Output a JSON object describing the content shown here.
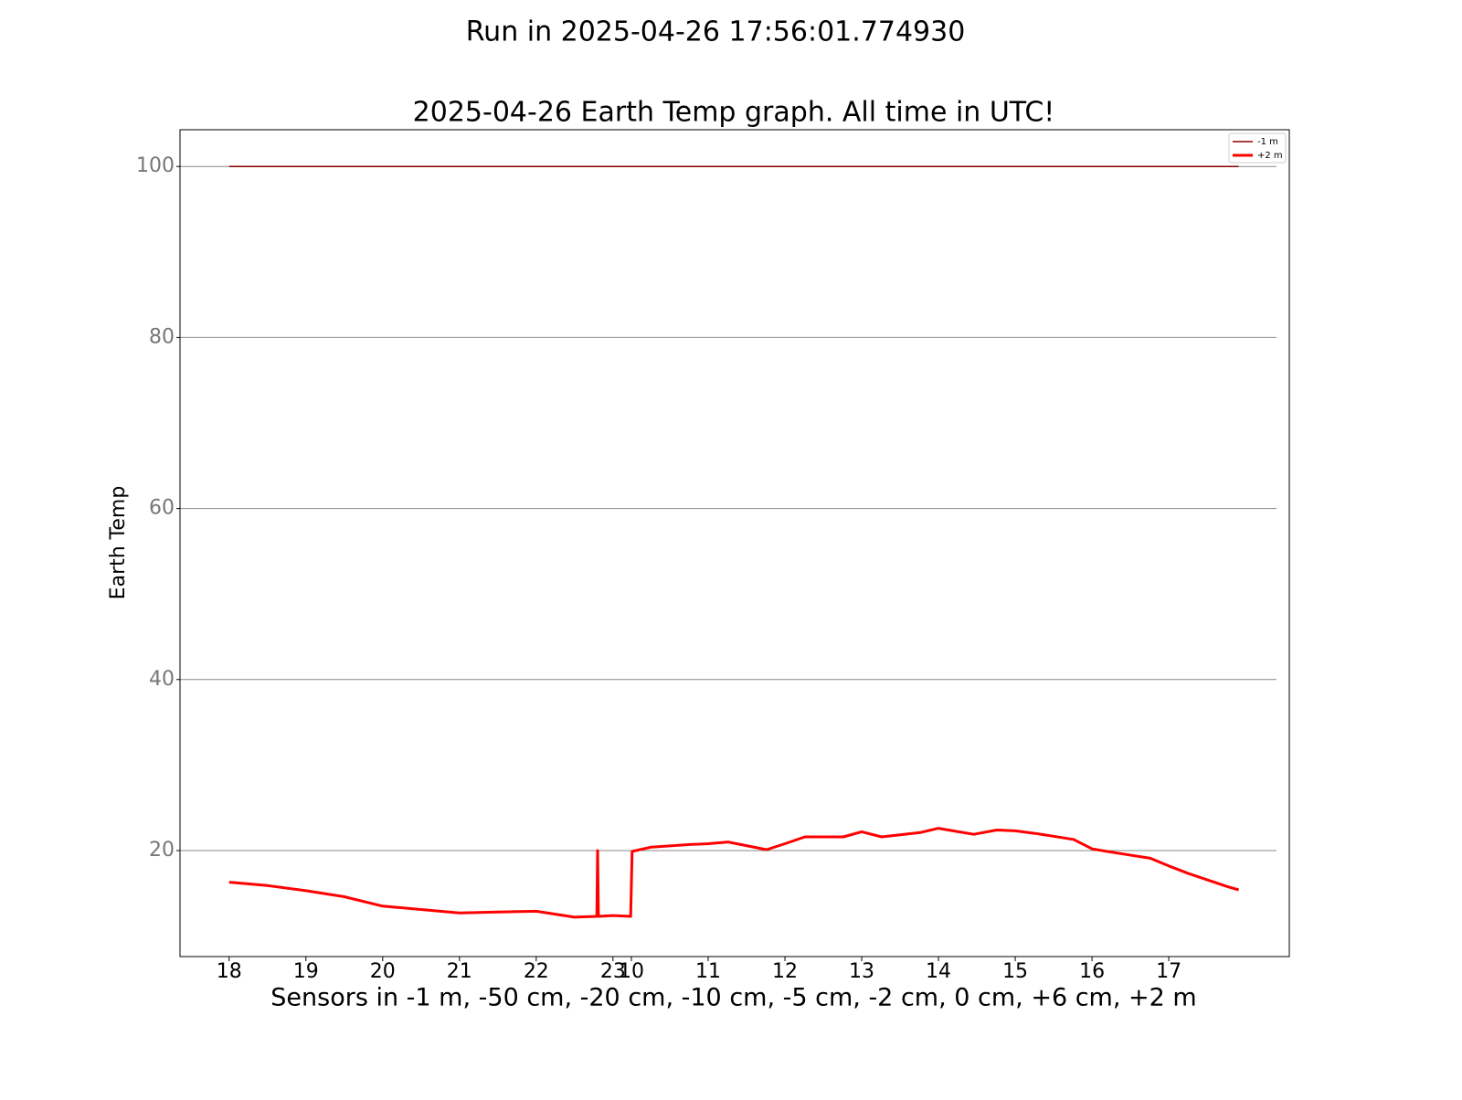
{
  "chart_data": {
    "type": "line",
    "suptitle": "Run in 2025-04-26 17:56:01.774930",
    "title": "2025-04-26 Earth Temp graph. All time in UTC!",
    "y_label": "Earth Temp",
    "x_label": "Sensors in  -1 m, -50 cm, -20 cm, -10 cm, -5 cm, -2 cm, 0 cm, +6 cm, +2 m",
    "x": [
      0,
      0.5,
      1.0,
      1.5,
      2.0,
      2.5,
      3.0,
      3.5,
      4.0,
      4.5,
      4.79,
      4.8,
      4.81,
      5.0,
      5.23,
      5.25,
      5.5,
      6.0,
      6.24,
      6.5,
      7.0,
      7.24,
      7.5,
      8.0,
      8.24,
      8.5,
      9.0,
      9.24,
      9.5,
      9.7,
      10.0,
      10.24,
      10.5,
      11.0,
      11.24,
      11.5,
      12.0,
      12.24,
      12.5,
      13.0,
      13.15
    ],
    "series": [
      {
        "name": "-1 m",
        "color": "#8b0000",
        "width": 1.5,
        "values": [
          100,
          100,
          100,
          100,
          100,
          100,
          100,
          100,
          100,
          100,
          100,
          100,
          100,
          100,
          100,
          100,
          100,
          100,
          100,
          100,
          100,
          100,
          100,
          100,
          100,
          100,
          100,
          100,
          100,
          100,
          100,
          100,
          100,
          100,
          100,
          100,
          100,
          100,
          100,
          100,
          100
        ]
      },
      {
        "name": "+2 m",
        "color": "#ff0000",
        "width": 3,
        "values": [
          16.3,
          15.9,
          15.3,
          14.6,
          13.5,
          13.1,
          12.7,
          12.8,
          12.9,
          12.2,
          12.3,
          20,
          12.3,
          12.4,
          12.3,
          19.9,
          20.4,
          20.7,
          20.8,
          21.0,
          20.1,
          20.8,
          21.6,
          21.6,
          22.2,
          21.6,
          22.1,
          22.6,
          22.2,
          21.9,
          22.4,
          22.3,
          22.0,
          21.3,
          20.2,
          19.8,
          19.1,
          18.2,
          17.3,
          15.8,
          15.4
        ]
      }
    ],
    "xlim": [
      -0.64,
      13.81
    ],
    "xticks": [
      {
        "value": 0,
        "label": "18"
      },
      {
        "value": 1,
        "label": "19"
      },
      {
        "value": 2,
        "label": "20"
      },
      {
        "value": 3,
        "label": "21"
      },
      {
        "value": 4,
        "label": "22"
      },
      {
        "value": 5,
        "label": "23"
      },
      {
        "value": 5.24,
        "label": "10"
      },
      {
        "value": 6.24,
        "label": "11"
      },
      {
        "value": 7.24,
        "label": "12"
      },
      {
        "value": 8.24,
        "label": "13"
      },
      {
        "value": 9.24,
        "label": "14"
      },
      {
        "value": 10.24,
        "label": "15"
      },
      {
        "value": 11.24,
        "label": "16"
      },
      {
        "value": 12.24,
        "label": "17"
      }
    ],
    "ylim": [
      7.6,
      104.3
    ],
    "yticks": [
      20,
      40,
      60,
      80,
      100
    ],
    "grid": true,
    "legend": "upper right"
  }
}
